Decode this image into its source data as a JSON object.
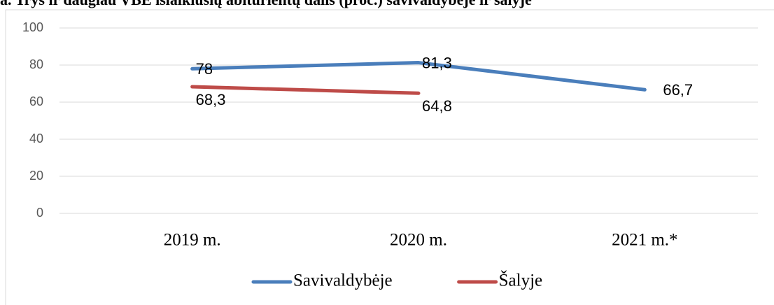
{
  "chart_data": {
    "type": "line",
    "title": "a. Trys ir daugiau VBE išlaikiusių abiturientų dalis (proc.) savivaldybėje ir šalyje",
    "categories": [
      "2019 m.",
      "2020 m.",
      "2021 m.*"
    ],
    "series": [
      {
        "name": "Savivaldybėje",
        "color": "#4a7ebb",
        "values": [
          78,
          81.3,
          66.7
        ],
        "value_labels": [
          "78",
          "81,3",
          "66,7"
        ]
      },
      {
        "name": "Šalyje",
        "color": "#be4b48",
        "values": [
          68.3,
          64.8,
          null
        ],
        "value_labels": [
          "68,3",
          "64,8",
          null
        ]
      }
    ],
    "ylim": [
      0,
      100
    ],
    "yticks": [
      0,
      20,
      40,
      60,
      80,
      100
    ],
    "grid": true,
    "legend": "bottom"
  }
}
